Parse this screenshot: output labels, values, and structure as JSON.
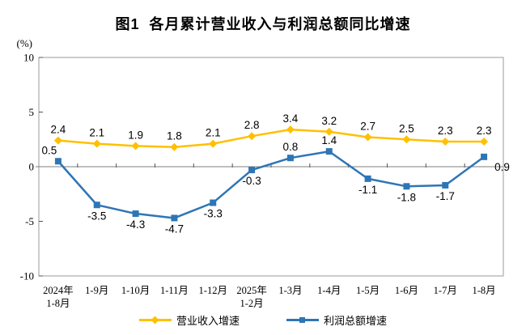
{
  "title": "图1  各月累计营业收入与利润总额同比增速",
  "chart_data": {
    "type": "line",
    "title": "图1  各月累计营业收入与利润总额同比增速",
    "ylabel": "(%)",
    "xlabel": "",
    "ylim": [
      -10,
      10
    ],
    "yticks": [
      10,
      5,
      0,
      -5,
      -10
    ],
    "grid": false,
    "legend_position": "bottom",
    "categories": [
      [
        "2024年",
        "1-8月"
      ],
      [
        "1-9月"
      ],
      [
        "1-10月"
      ],
      [
        "1-11月"
      ],
      [
        "1-12月"
      ],
      [
        "2025年",
        "1-2月"
      ],
      [
        "1-3月"
      ],
      [
        "1-4月"
      ],
      [
        "1-5月"
      ],
      [
        "1-6月"
      ],
      [
        "1-7月"
      ],
      [
        "1-8月"
      ]
    ],
    "series": [
      {
        "name": "营业收入增速",
        "color": "#FFC000",
        "marker": "diamond",
        "values": [
          2.4,
          2.1,
          1.9,
          1.8,
          2.1,
          2.8,
          3.4,
          3.2,
          2.7,
          2.5,
          2.3,
          2.3
        ],
        "label_placement": [
          "above",
          "above",
          "above",
          "above",
          "above",
          "above",
          "above",
          "above",
          "above",
          "above",
          "above",
          "above"
        ]
      },
      {
        "name": "利润总额增速",
        "color": "#2E75B6",
        "marker": "square",
        "values": [
          0.5,
          -3.5,
          -4.3,
          -4.7,
          -3.3,
          -0.3,
          0.8,
          1.4,
          -1.1,
          -1.8,
          -1.7,
          0.9
        ],
        "label_placement": [
          "above-left",
          "below",
          "below",
          "below",
          "below",
          "below",
          "above",
          "above",
          "below",
          "below",
          "below",
          "below-right"
        ]
      }
    ],
    "axis_colors": {
      "border": "#9a9a9a",
      "zero_line": "#7f7f7f",
      "tick": "#555555"
    }
  }
}
